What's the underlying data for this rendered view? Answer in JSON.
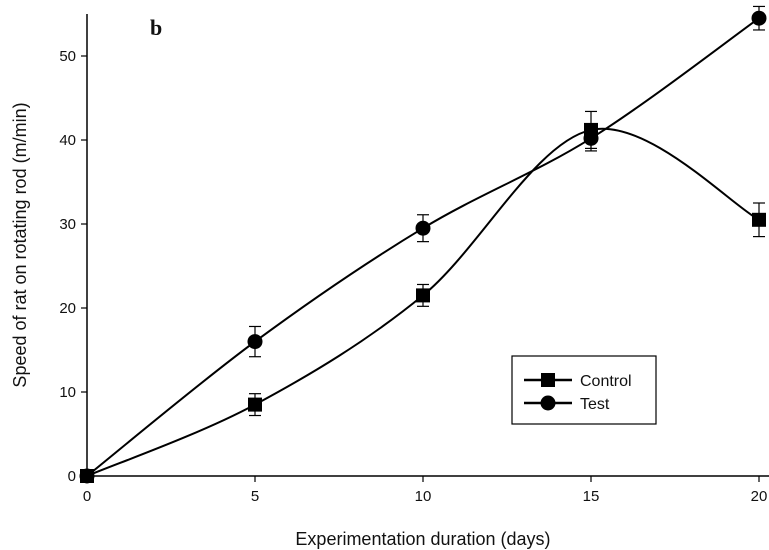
{
  "chart_data": {
    "type": "line",
    "panel_label": "b",
    "xlabel": "Experimentation duration (days)",
    "ylabel": "Speed of rat on rotating rod (m/min)",
    "x": [
      0,
      5,
      10,
      15,
      20
    ],
    "xlim": [
      0,
      20
    ],
    "ylim": [
      0,
      55
    ],
    "xticks": [
      "0",
      "5",
      "10",
      "15",
      "20"
    ],
    "yticks": [
      "0",
      "10",
      "20",
      "30",
      "40",
      "50"
    ],
    "grid": false,
    "legend_placement": "lower-right",
    "series": [
      {
        "name": "Control",
        "marker": "square",
        "values": [
          0,
          8.5,
          21.5,
          41.2,
          30.5
        ],
        "errors": [
          0,
          1.3,
          1.3,
          2.2,
          2.0
        ]
      },
      {
        "name": "Test",
        "marker": "circle",
        "values": [
          0,
          16,
          29.5,
          40.2,
          54.5
        ],
        "errors": [
          0,
          1.8,
          1.6,
          1.5,
          1.4
        ]
      }
    ],
    "colors": {
      "line": "#000000",
      "background": "#ffffff"
    }
  }
}
